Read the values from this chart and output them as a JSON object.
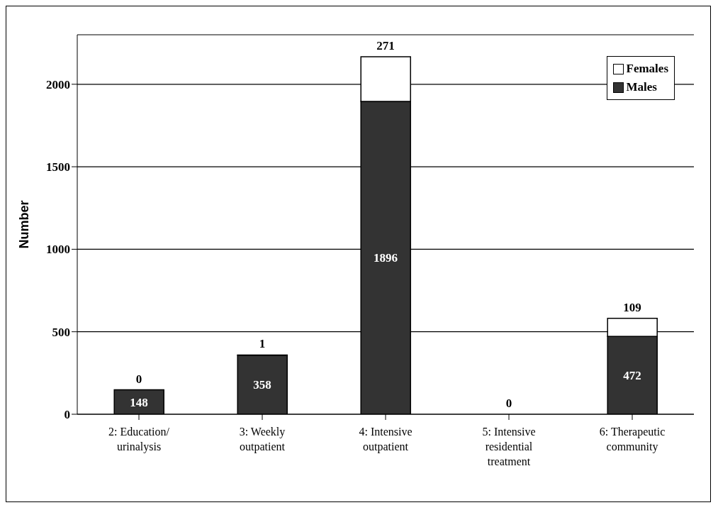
{
  "chart_data": {
    "type": "bar",
    "ylabel": "Number",
    "categories": [
      "2: Education/ urinalysis",
      "3: Weekly outpatient",
      "4: Intensive outpatient",
      "5: Intensive residential treatment",
      "6: Therapeutic community"
    ],
    "series": [
      {
        "name": "Males",
        "color": "#333333",
        "values": [
          148,
          358,
          1896,
          0,
          472
        ],
        "value_labels": [
          "148",
          "358",
          "1896",
          null,
          "472"
        ]
      },
      {
        "name": "Females",
        "color": "#ffffff",
        "values": [
          0,
          1,
          271,
          0,
          109
        ],
        "value_labels": [
          "0",
          "1",
          "271",
          "0",
          "109"
        ]
      }
    ],
    "stacked": true,
    "ylim": [
      0,
      2300
    ],
    "yticks": [
      0,
      500,
      1000,
      1500,
      2000
    ],
    "grid": "y",
    "legend": "top right"
  }
}
